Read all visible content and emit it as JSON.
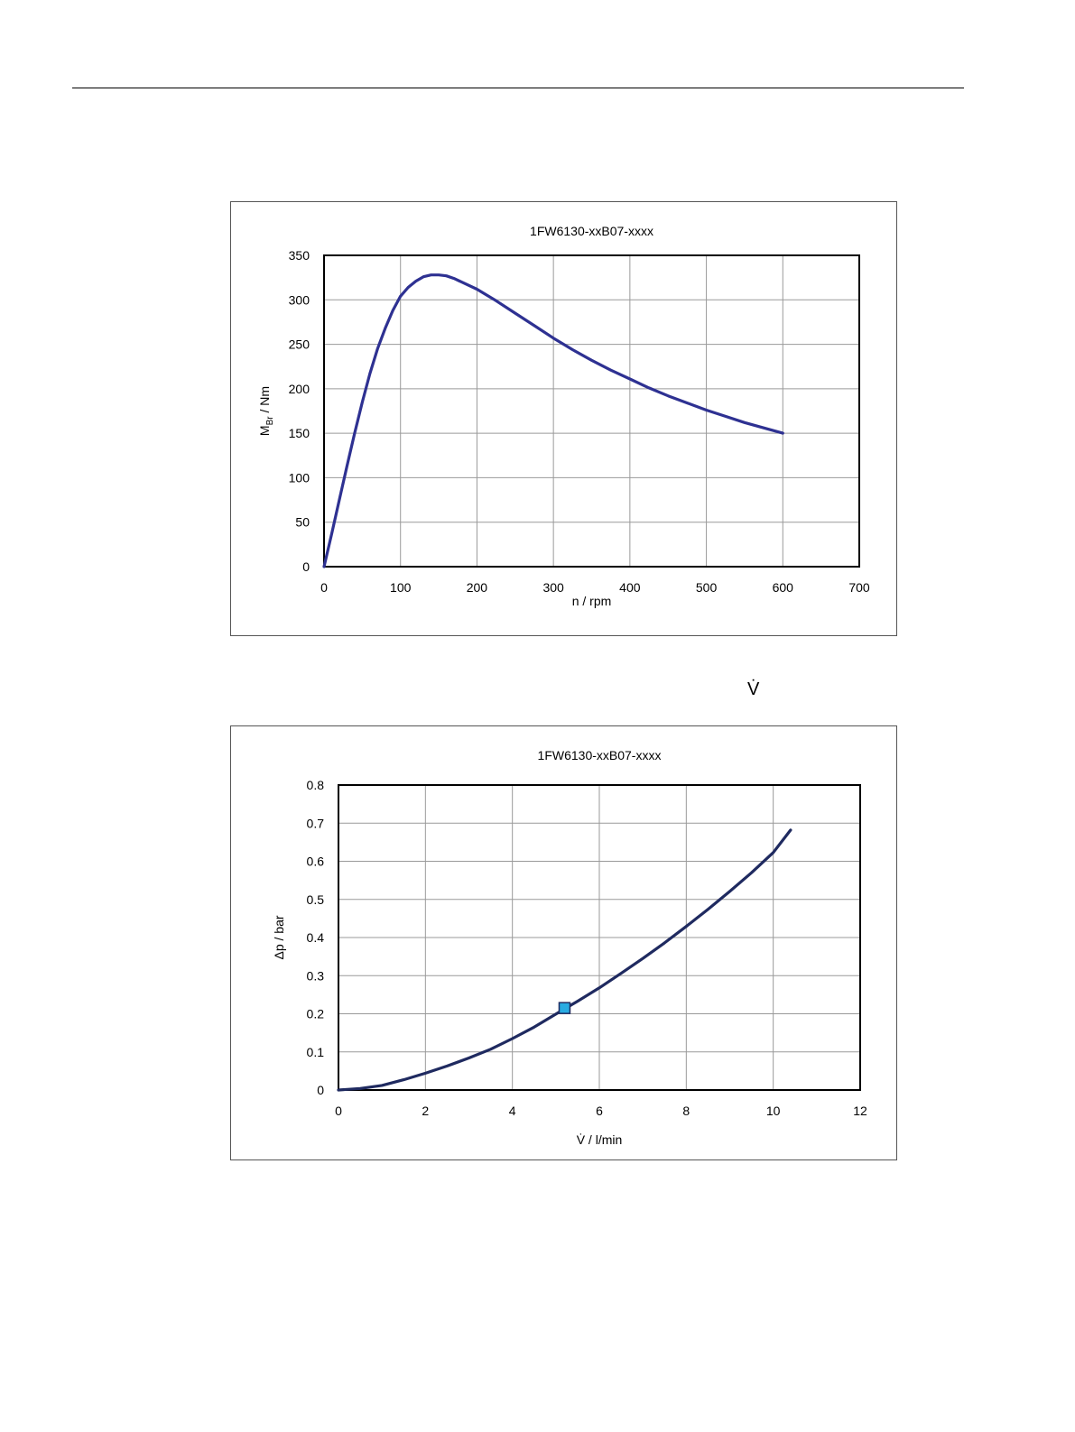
{
  "page": {
    "vdot_symbol": "V̇"
  },
  "chart_data": [
    {
      "type": "line",
      "title": "1FW6130-xxB07-xxxx",
      "xlabel": "n / rpm",
      "ylabel_main": "M",
      "ylabel_sub": "Br",
      "ylabel_rest": " / Nm",
      "xlim": [
        0,
        700
      ],
      "ylim": [
        0,
        350
      ],
      "xticks": [
        0,
        100,
        200,
        300,
        400,
        500,
        600,
        700
      ],
      "yticks": [
        0,
        50,
        100,
        150,
        200,
        250,
        300,
        350
      ],
      "grid": true,
      "line_color": "#2e3192",
      "series": [
        {
          "x": [
            0,
            10,
            20,
            30,
            40,
            50,
            60,
            70,
            80,
            90,
            100,
            110,
            120,
            130,
            140,
            150,
            160,
            170,
            180,
            200,
            225,
            250,
            275,
            300,
            325,
            350,
            375,
            400,
            425,
            450,
            475,
            500,
            525,
            550,
            575,
            600
          ],
          "y": [
            0,
            37,
            75,
            113,
            150,
            185,
            217,
            245,
            268,
            288,
            304,
            314,
            321,
            326,
            328,
            328,
            327,
            324,
            320,
            312,
            299,
            285,
            271,
            257,
            244,
            232,
            221,
            211,
            201,
            192,
            184,
            176,
            169,
            162,
            156,
            150
          ]
        }
      ]
    },
    {
      "type": "line",
      "title": "1FW6130-xxB07-xxxx",
      "xlabel": "V̇ / l/min",
      "ylabel": "Δp / bar",
      "xlim": [
        0,
        12
      ],
      "ylim": [
        0,
        0.8
      ],
      "xticks": [
        "0",
        "2",
        "4",
        "6",
        "8",
        "10",
        "12"
      ],
      "yticks": [
        "0",
        "0.1",
        "0.2",
        "0.3",
        "0.4",
        "0.5",
        "0.6",
        "0.7",
        "0.8"
      ],
      "grid": true,
      "line_color": "#1f2a60",
      "marker": {
        "x": 5.2,
        "y": 0.215,
        "color": "#29abe2"
      },
      "series": [
        {
          "x": [
            0,
            0.5,
            1,
            1.5,
            2,
            2.5,
            3,
            3.5,
            4,
            4.5,
            5,
            5.5,
            6,
            6.5,
            7,
            7.5,
            8,
            8.5,
            9,
            9.5,
            10,
            10.4
          ],
          "y": [
            0,
            0.004,
            0.012,
            0.027,
            0.044,
            0.063,
            0.084,
            0.107,
            0.135,
            0.165,
            0.199,
            0.233,
            0.268,
            0.306,
            0.345,
            0.386,
            0.429,
            0.474,
            0.521,
            0.57,
            0.623,
            0.682
          ]
        }
      ]
    }
  ]
}
